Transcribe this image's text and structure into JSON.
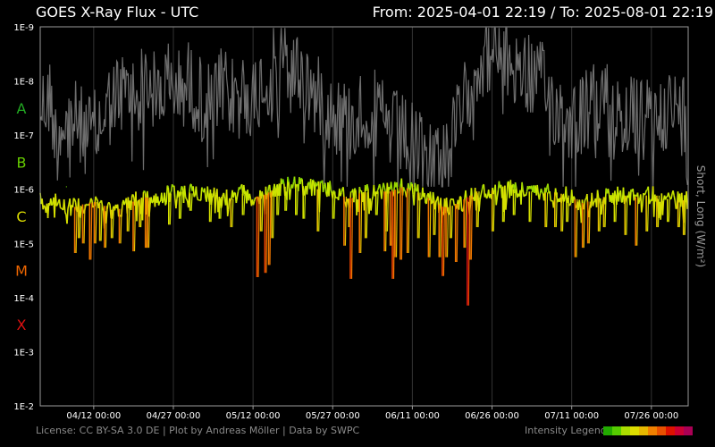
{
  "header": {
    "title": "GOES X-Ray Flux - UTC",
    "range": "From: 2025-04-01 22:19  /  To: 2025-08-01 22:19"
  },
  "footer": {
    "credits": "License: CC BY-SA 3.0 DE | Plot by Andreas Möller | Data by SWPC",
    "legend_label": "Intensity Legend",
    "legend_colors": [
      "#22aa00",
      "#55cc00",
      "#aadd00",
      "#dddd00",
      "#e6b800",
      "#f08000",
      "#e85000",
      "#dd1100",
      "#cc0033",
      "#aa0055"
    ]
  },
  "chart_data": {
    "type": "line",
    "title": "GOES X-Ray Flux - UTC",
    "ylabel_right": "Short, Long (W/m²)",
    "yscale": "log",
    "ylim": [
      "1E-9",
      "1E-2"
    ],
    "y_ticks": [
      "1E-2",
      "1E-3",
      "1E-4",
      "1E-5",
      "1E-6",
      "1E-7",
      "1E-8",
      "1E-9"
    ],
    "class_labels": [
      {
        "label": "X",
        "color": "#dd1111",
        "flux": 0.000316
      },
      {
        "label": "M",
        "color": "#ee6600",
        "flux": 3.16e-05
      },
      {
        "label": "C",
        "color": "#dddd00",
        "flux": 3.16e-06
      },
      {
        "label": "B",
        "color": "#66cc00",
        "flux": 3.16e-07
      },
      {
        "label": "A",
        "color": "#22aa22",
        "flux": 3.16e-08
      }
    ],
    "x_ticks": [
      "04/12 00:00",
      "04/27 00:00",
      "05/12 00:00",
      "05/27 00:00",
      "06/11 00:00",
      "06/26 00:00",
      "07/11 00:00",
      "07/26 00:00"
    ],
    "x_tick_days": [
      10.07,
      25.07,
      40.07,
      55.07,
      70.07,
      85.07,
      100.07,
      115.07
    ],
    "xlim_days": [
      0,
      122
    ],
    "grid": true,
    "series": [
      {
        "name": "Long",
        "color_scale": "intensity",
        "baseline": [
          [
            0,
            1.6e-06
          ],
          [
            2,
            1.5e-06
          ],
          [
            4,
            1.8e-06
          ],
          [
            6,
            2.2e-06
          ],
          [
            8,
            1.9e-06
          ],
          [
            10,
            1.7e-06
          ],
          [
            12,
            2e-06
          ],
          [
            14,
            2.6e-06
          ],
          [
            16,
            2e-06
          ],
          [
            18,
            1.6e-06
          ],
          [
            20,
            1.4e-06
          ],
          [
            22,
            1.6e-06
          ],
          [
            24,
            1.2e-06
          ],
          [
            26,
            1.1e-06
          ],
          [
            28,
            1.2e-06
          ],
          [
            30,
            1.1e-06
          ],
          [
            32,
            1.2e-06
          ],
          [
            34,
            1.4e-06
          ],
          [
            36,
            1.5e-06
          ],
          [
            38,
            1.2e-06
          ],
          [
            40,
            1.4e-06
          ],
          [
            42,
            1.3e-06
          ],
          [
            44,
            1e-06
          ],
          [
            46,
            9e-07
          ],
          [
            48,
            8e-07
          ],
          [
            50,
            9e-07
          ],
          [
            52,
            1e-06
          ],
          [
            54,
            1e-06
          ],
          [
            56,
            1.2e-06
          ],
          [
            58,
            1.5e-06
          ],
          [
            60,
            1.2e-06
          ],
          [
            62,
            1.1e-06
          ],
          [
            64,
            1.1e-06
          ],
          [
            66,
            1.1e-06
          ],
          [
            68,
            9e-07
          ],
          [
            70,
            1e-06
          ],
          [
            72,
            1.3e-06
          ],
          [
            74,
            1.6e-06
          ],
          [
            76,
            2.2e-06
          ],
          [
            78,
            1.9e-06
          ],
          [
            80,
            1.5e-06
          ],
          [
            82,
            1.1e-06
          ],
          [
            84,
            1.1e-06
          ],
          [
            86,
            1e-06
          ],
          [
            88,
            1e-06
          ],
          [
            90,
            1e-06
          ],
          [
            92,
            1.1e-06
          ],
          [
            94,
            1.2e-06
          ],
          [
            96,
            1.1e-06
          ],
          [
            98,
            1.2e-06
          ],
          [
            100,
            1.4e-06
          ],
          [
            102,
            1.8e-06
          ],
          [
            104,
            1.6e-06
          ],
          [
            106,
            1.4e-06
          ],
          [
            108,
            1.3e-06
          ],
          [
            110,
            1.3e-06
          ],
          [
            112,
            1.4e-06
          ],
          [
            114,
            1.3e-06
          ],
          [
            116,
            1.3e-06
          ],
          [
            118,
            1.5e-06
          ],
          [
            120,
            1.6e-06
          ],
          [
            122,
            1.6e-06
          ]
        ],
        "peaks": [
          [
            4.6,
            9e-07
          ],
          [
            6.5,
            1.5e-05
          ],
          [
            7.2,
            8e-06
          ],
          [
            8.0,
            1e-05
          ],
          [
            9.3,
            2e-05
          ],
          [
            10.2,
            1e-05
          ],
          [
            11.2,
            9e-06
          ],
          [
            12.1,
            1.2e-05
          ],
          [
            13.4,
            8e-06
          ],
          [
            14.9,
            1e-05
          ],
          [
            16.4,
            6e-06
          ],
          [
            17.5,
            1.4e-05
          ],
          [
            18.7,
            5e-06
          ],
          [
            19.8,
            1.2e-05
          ],
          [
            20.2,
            1.2e-05
          ],
          [
            24.2,
            4.5e-06
          ],
          [
            26.2,
            3.5e-06
          ],
          [
            28.2,
            2.5e-06
          ],
          [
            31.9,
            4e-06
          ],
          [
            33.7,
            3.5e-06
          ],
          [
            35.9,
            5e-06
          ],
          [
            38.1,
            3e-06
          ],
          [
            40.8,
            4.2e-05
          ],
          [
            41.5,
            6e-06
          ],
          [
            42.3,
            3.5e-05
          ],
          [
            43.0,
            2.5e-05
          ],
          [
            43.6,
            8e-06
          ],
          [
            44.6,
            3e-06
          ],
          [
            46.1,
            2.5e-06
          ],
          [
            48.1,
            3e-06
          ],
          [
            49.5,
            3.5e-06
          ],
          [
            52.2,
            6e-06
          ],
          [
            55.1,
            3.5e-06
          ],
          [
            57.2,
            1.1e-05
          ],
          [
            58.1,
            5e-06
          ],
          [
            58.4,
            4.5e-05
          ],
          [
            60.1,
            1.5e-05
          ],
          [
            61.2,
            8e-06
          ],
          [
            63.2,
            3e-06
          ],
          [
            64.8,
            1.4e-05
          ],
          [
            65.1,
            6e-06
          ],
          [
            65.9,
            1.1e-05
          ],
          [
            66.3,
            4.5e-05
          ],
          [
            66.8,
            1.8e-05
          ],
          [
            67.8,
            2e-05
          ],
          [
            69.1,
            1.5e-05
          ],
          [
            71.1,
            8e-06
          ],
          [
            73.1,
            1.8e-05
          ],
          [
            74.1,
            7e-06
          ],
          [
            75.1,
            1.8e-05
          ],
          [
            75.7,
            4e-05
          ],
          [
            76.4,
            1.8e-05
          ],
          [
            77.2,
            8e-06
          ],
          [
            78.2,
            2.2e-05
          ],
          [
            79.8,
            1.2e-05
          ],
          [
            80.4,
            0.00014
          ],
          [
            80.9,
            2e-05
          ],
          [
            82.2,
            5e-06
          ],
          [
            85.1,
            6e-06
          ],
          [
            87.1,
            4e-06
          ],
          [
            89.1,
            3e-06
          ],
          [
            92.1,
            4e-06
          ],
          [
            95.1,
            5e-06
          ],
          [
            96.9,
            5e-06
          ],
          [
            98.1,
            6e-06
          ],
          [
            99.1,
            4e-06
          ],
          [
            100.7,
            1.8e-05
          ],
          [
            102.1,
            1.2e-05
          ],
          [
            103.1,
            1e-05
          ],
          [
            105.1,
            6e-06
          ],
          [
            106.1,
            5e-06
          ],
          [
            108.1,
            4e-06
          ],
          [
            110.1,
            7e-06
          ],
          [
            112.1,
            1.1e-05
          ],
          [
            114.1,
            6e-06
          ],
          [
            116.1,
            5e-06
          ],
          [
            118.1,
            4e-06
          ],
          [
            120.1,
            5e-06
          ],
          [
            121.1,
            7e-06
          ]
        ]
      },
      {
        "name": "Short",
        "color": "#6e6e6e",
        "baseline": [
          [
            0,
            3e-08
          ],
          [
            2,
            2e-08
          ],
          [
            3,
            1.5e-07
          ],
          [
            4,
            6e-08
          ],
          [
            6,
            5e-08
          ],
          [
            8,
            8e-08
          ],
          [
            10,
            1e-07
          ],
          [
            12,
            4e-08
          ],
          [
            14,
            2e-08
          ],
          [
            16,
            1.5e-08
          ],
          [
            18,
            2e-08
          ],
          [
            20,
            1e-08
          ],
          [
            22,
            2e-08
          ],
          [
            24,
            1e-08
          ],
          [
            26,
            1.5e-08
          ],
          [
            28,
            1e-08
          ],
          [
            30,
            2e-08
          ],
          [
            32,
            3e-08
          ],
          [
            34,
            1.5e-08
          ],
          [
            36,
            2e-08
          ],
          [
            38,
            1.5e-08
          ],
          [
            40,
            2e-08
          ],
          [
            42,
            1e-08
          ],
          [
            44,
            6e-09
          ],
          [
            46,
            4e-09
          ],
          [
            48,
            6e-09
          ],
          [
            50,
            1e-08
          ],
          [
            52,
            2e-08
          ],
          [
            54,
            3e-08
          ],
          [
            56,
            4e-08
          ],
          [
            58,
            6e-08
          ],
          [
            60,
            4e-08
          ],
          [
            62,
            3e-08
          ],
          [
            64,
            5e-08
          ],
          [
            66,
            8e-08
          ],
          [
            68,
            1e-07
          ],
          [
            70,
            1.5e-07
          ],
          [
            72,
            2e-07
          ],
          [
            74,
            2.5e-07
          ],
          [
            76,
            2e-07
          ],
          [
            78,
            1e-07
          ],
          [
            80,
            2e-08
          ],
          [
            82,
            5e-09
          ],
          [
            84,
            3e-09
          ],
          [
            86,
            3e-09
          ],
          [
            88,
            4e-09
          ],
          [
            90,
            5e-09
          ],
          [
            92,
            8e-09
          ],
          [
            94,
            1e-08
          ],
          [
            96,
            2e-08
          ],
          [
            98,
            4e-08
          ],
          [
            100,
            5e-08
          ],
          [
            102,
            4e-08
          ],
          [
            104,
            3e-08
          ],
          [
            106,
            2e-08
          ],
          [
            108,
            3e-08
          ],
          [
            110,
            4e-08
          ],
          [
            112,
            5e-08
          ],
          [
            114,
            6e-08
          ],
          [
            116,
            4e-08
          ],
          [
            118,
            3e-08
          ],
          [
            120,
            4e-08
          ],
          [
            122,
            4e-08
          ]
        ]
      }
    ]
  }
}
